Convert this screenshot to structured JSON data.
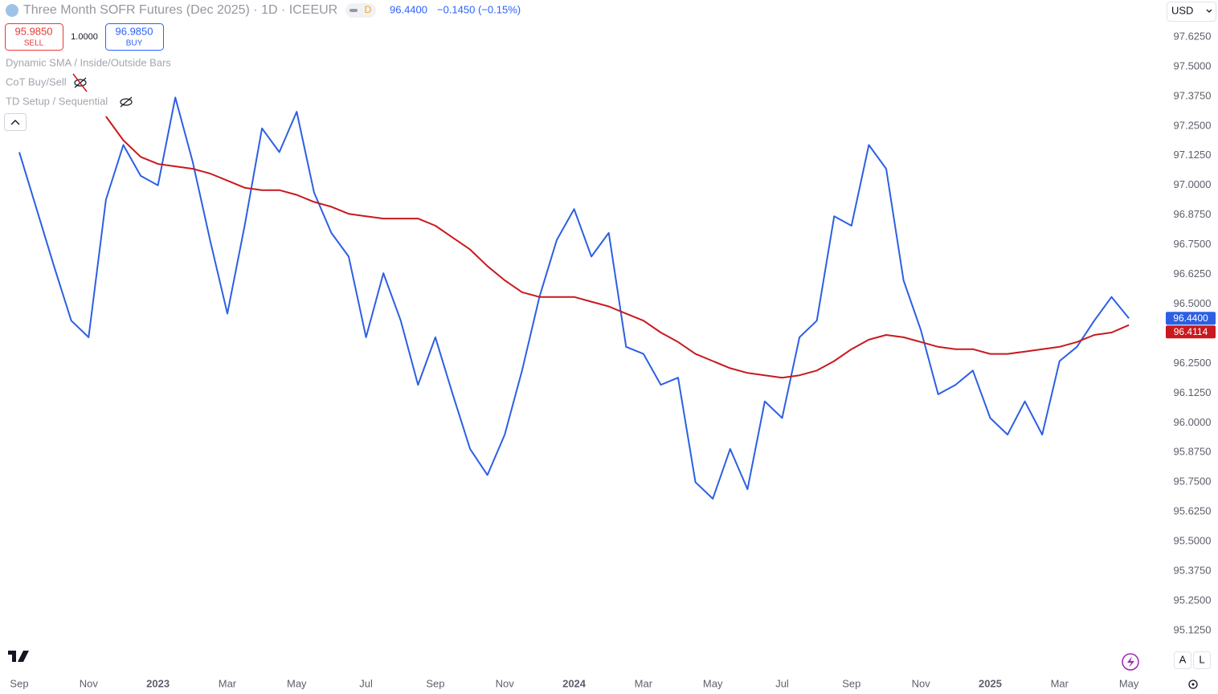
{
  "header": {
    "title": "Three Month SOFR Futures (Dec 2025) · 1D · ICEEUR",
    "badge": "D",
    "price": "96.4400",
    "change": "−0.1450 (−0.15%)"
  },
  "trading": {
    "sell_price": "95.9850",
    "sell_label": "SELL",
    "quantity": "1.0000",
    "buy_price": "96.9850",
    "buy_label": "BUY"
  },
  "indicators": [
    "Dynamic SMA / Inside/Outside Bars",
    "CoT Buy/Sell",
    "TD Setup / Sequential"
  ],
  "toolbar": {
    "currency": "USD",
    "auto": "A",
    "log": "L"
  },
  "chart_data": {
    "type": "line",
    "categories": [
      "Sep",
      null,
      null,
      null,
      "Nov",
      null,
      null,
      null,
      "2023",
      null,
      null,
      null,
      "Mar",
      null,
      null,
      null,
      "May",
      null,
      null,
      null,
      "Jul",
      null,
      null,
      null,
      "Sep",
      null,
      null,
      null,
      "Nov",
      null,
      null,
      null,
      "2024",
      null,
      null,
      null,
      "Mar",
      null,
      null,
      null,
      "May",
      null,
      null,
      null,
      "Jul",
      null,
      null,
      null,
      "Sep",
      null,
      null,
      null,
      "Nov",
      null,
      null,
      null,
      "2025",
      null,
      null,
      null,
      "Mar",
      null,
      null,
      null,
      "May"
    ],
    "series": [
      {
        "color": "#2c5fe3",
        "last_label": "96.4400",
        "values": [
          97.14,
          96.9,
          96.66,
          96.43,
          96.36,
          96.94,
          97.17,
          97.04,
          97.0,
          97.37,
          97.1,
          96.77,
          96.46,
          96.83,
          97.24,
          97.14,
          97.31,
          96.97,
          96.8,
          96.7,
          96.36,
          96.63,
          96.43,
          96.16,
          96.36,
          96.12,
          95.89,
          95.78,
          95.95,
          96.22,
          96.53,
          96.77,
          96.9,
          96.7,
          96.8,
          96.32,
          96.29,
          96.16,
          96.19,
          95.75,
          95.68,
          95.89,
          95.72,
          96.09,
          96.02,
          96.36,
          96.43,
          96.87,
          96.83,
          97.17,
          97.07,
          96.6,
          96.39,
          96.12,
          96.16,
          96.22,
          96.02,
          95.95,
          96.09,
          95.95,
          96.26,
          96.32,
          96.43,
          96.53,
          96.44
        ]
      },
      {
        "color": "#c8191e",
        "last_label": "96.4114",
        "values": [
          null,
          null,
          null,
          null,
          null,
          97.29,
          97.19,
          97.12,
          97.09,
          97.08,
          97.07,
          97.05,
          97.02,
          96.99,
          96.98,
          96.98,
          96.96,
          96.93,
          96.91,
          96.88,
          96.87,
          96.86,
          96.86,
          96.86,
          96.83,
          96.78,
          96.73,
          96.66,
          96.6,
          96.55,
          96.53,
          96.53,
          96.53,
          96.51,
          96.49,
          96.46,
          96.43,
          96.38,
          96.34,
          96.29,
          96.26,
          96.23,
          96.21,
          96.2,
          96.19,
          96.2,
          96.22,
          96.26,
          96.31,
          96.35,
          96.37,
          96.36,
          96.34,
          96.32,
          96.31,
          96.31,
          96.29,
          96.29,
          96.3,
          96.31,
          96.32,
          96.34,
          96.37,
          96.38,
          96.4114
        ]
      }
    ],
    "ylim": [
      94.9525,
      97.7806
    ],
    "yticks": [
      {
        "value": 97.625,
        "label": "97.6250"
      },
      {
        "value": 97.5,
        "label": "97.5000"
      },
      {
        "value": 97.375,
        "label": "97.3750"
      },
      {
        "value": 97.25,
        "label": "97.2500"
      },
      {
        "value": 97.125,
        "label": "97.1250"
      },
      {
        "value": 97.0,
        "label": "97.0000"
      },
      {
        "value": 96.875,
        "label": "96.8750"
      },
      {
        "value": 96.75,
        "label": "96.7500"
      },
      {
        "value": 96.625,
        "label": "96.6250"
      },
      {
        "value": 96.5,
        "label": "96.5000"
      },
      {
        "value": 96.25,
        "label": "96.2500"
      },
      {
        "value": 96.125,
        "label": "96.1250"
      },
      {
        "value": 96.0,
        "label": "96.0000"
      },
      {
        "value": 95.875,
        "label": "95.8750"
      },
      {
        "value": 95.75,
        "label": "95.7500"
      },
      {
        "value": 95.625,
        "label": "95.6250"
      },
      {
        "value": 95.5,
        "label": "95.5000"
      },
      {
        "value": 95.375,
        "label": "95.3750"
      },
      {
        "value": 95.25,
        "label": "95.2500"
      },
      {
        "value": 95.125,
        "label": "95.1250"
      }
    ],
    "grid": false
  }
}
